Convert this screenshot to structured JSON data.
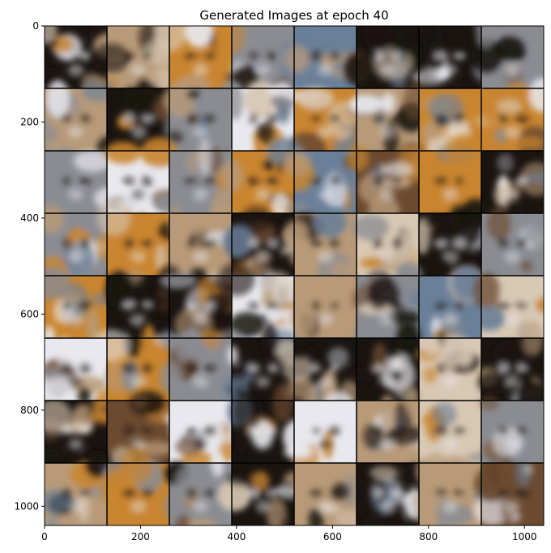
{
  "figure": {
    "title": "Generated Images at epoch 40"
  },
  "axes": {
    "x_ticks": [
      {
        "value": 0,
        "label": "0"
      },
      {
        "value": 200,
        "label": "200"
      },
      {
        "value": 400,
        "label": "400"
      },
      {
        "value": 600,
        "label": "600"
      },
      {
        "value": 800,
        "label": "800"
      },
      {
        "value": 1000,
        "label": "1000"
      }
    ],
    "y_ticks": [
      {
        "value": 0,
        "label": "0"
      },
      {
        "value": 200,
        "label": "200"
      },
      {
        "value": 400,
        "label": "400"
      },
      {
        "value": 600,
        "label": "600"
      },
      {
        "value": 800,
        "label": "800"
      },
      {
        "value": 1000,
        "label": "1000"
      }
    ],
    "x_range": [
      0,
      1040
    ],
    "y_range": [
      0,
      1040
    ]
  },
  "image_grid": {
    "rows": 8,
    "cols": 8,
    "subject": "blurry generated cat faces",
    "palette": {
      "dark": "#1a1410",
      "white": "#e8e8ee",
      "grey": "#8a8c92",
      "blue_grey": "#6a7f98",
      "orange": "#c9852f",
      "tan": "#b89a78",
      "brown": "#6b4a30",
      "cream": "#d8c8b4",
      "grid_line": "#000000"
    },
    "tiles": [
      [
        "dark",
        "tan",
        "orange",
        "grey",
        "blue_grey",
        "dark",
        "dark",
        "grey"
      ],
      [
        "tan",
        "dark",
        "grey",
        "white",
        "orange",
        "tan",
        "orange",
        "orange"
      ],
      [
        "grey",
        "white",
        "grey",
        "orange",
        "blue_grey",
        "brown",
        "orange",
        "dark"
      ],
      [
        "grey",
        "orange",
        "tan",
        "dark",
        "tan",
        "cream",
        "dark",
        "grey"
      ],
      [
        "orange",
        "dark",
        "dark",
        "white",
        "tan",
        "grey",
        "blue_grey",
        "cream"
      ],
      [
        "white",
        "orange",
        "grey",
        "dark",
        "dark",
        "dark",
        "cream",
        "dark"
      ],
      [
        "dark",
        "brown",
        "white",
        "dark",
        "white",
        "tan",
        "cream",
        "grey"
      ],
      [
        "tan",
        "orange",
        "grey",
        "dark",
        "tan",
        "dark",
        "tan",
        "brown"
      ]
    ]
  }
}
